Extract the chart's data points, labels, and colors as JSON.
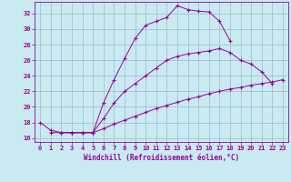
{
  "xlabel": "Windchill (Refroidissement éolien,°C)",
  "xlim": [
    -0.5,
    23.5
  ],
  "ylim": [
    15.5,
    33.5
  ],
  "yticks": [
    16,
    18,
    20,
    22,
    24,
    26,
    28,
    30,
    32
  ],
  "xticks": [
    0,
    1,
    2,
    3,
    4,
    5,
    6,
    7,
    8,
    9,
    10,
    11,
    12,
    13,
    14,
    15,
    16,
    17,
    18,
    19,
    20,
    21,
    22,
    23
  ],
  "background_color": "#c8eaf0",
  "grid_color": "#99bbcc",
  "line_color": "#990099",
  "curves": [
    {
      "x": [
        0,
        1,
        2,
        3,
        4,
        5,
        6,
        7,
        8,
        9,
        10,
        11,
        12,
        13,
        14,
        15,
        16,
        17,
        18
      ],
      "y": [
        18,
        17,
        16.7,
        16.7,
        16.7,
        16.7,
        20.5,
        23.5,
        26.2,
        28.8,
        30.5,
        31.0,
        31.5,
        33.0,
        32.5,
        32.3,
        32.2,
        31.0,
        28.5
      ]
    },
    {
      "x": [
        2,
        3,
        4,
        5,
        6,
        7,
        8,
        9,
        10,
        11,
        12,
        13,
        14,
        15,
        16,
        17,
        18,
        19,
        20,
        21,
        22
      ],
      "y": [
        16.7,
        16.7,
        16.7,
        16.7,
        18.5,
        20.5,
        22.0,
        23.0,
        24.0,
        25.0,
        26.0,
        26.5,
        26.8,
        27.0,
        27.2,
        27.5,
        27.0,
        26.0,
        25.5,
        24.5,
        23.0
      ]
    },
    {
      "x": [
        1,
        2,
        3,
        4,
        5,
        6,
        7,
        8,
        9,
        10,
        11,
        12,
        13,
        14,
        15,
        16,
        17,
        18,
        19,
        20,
        21,
        22,
        23
      ],
      "y": [
        16.7,
        16.7,
        16.7,
        16.7,
        16.7,
        17.2,
        17.8,
        18.3,
        18.8,
        19.3,
        19.8,
        20.2,
        20.6,
        21.0,
        21.3,
        21.7,
        22.0,
        22.3,
        22.5,
        22.8,
        23.0,
        23.2,
        23.5
      ]
    }
  ]
}
